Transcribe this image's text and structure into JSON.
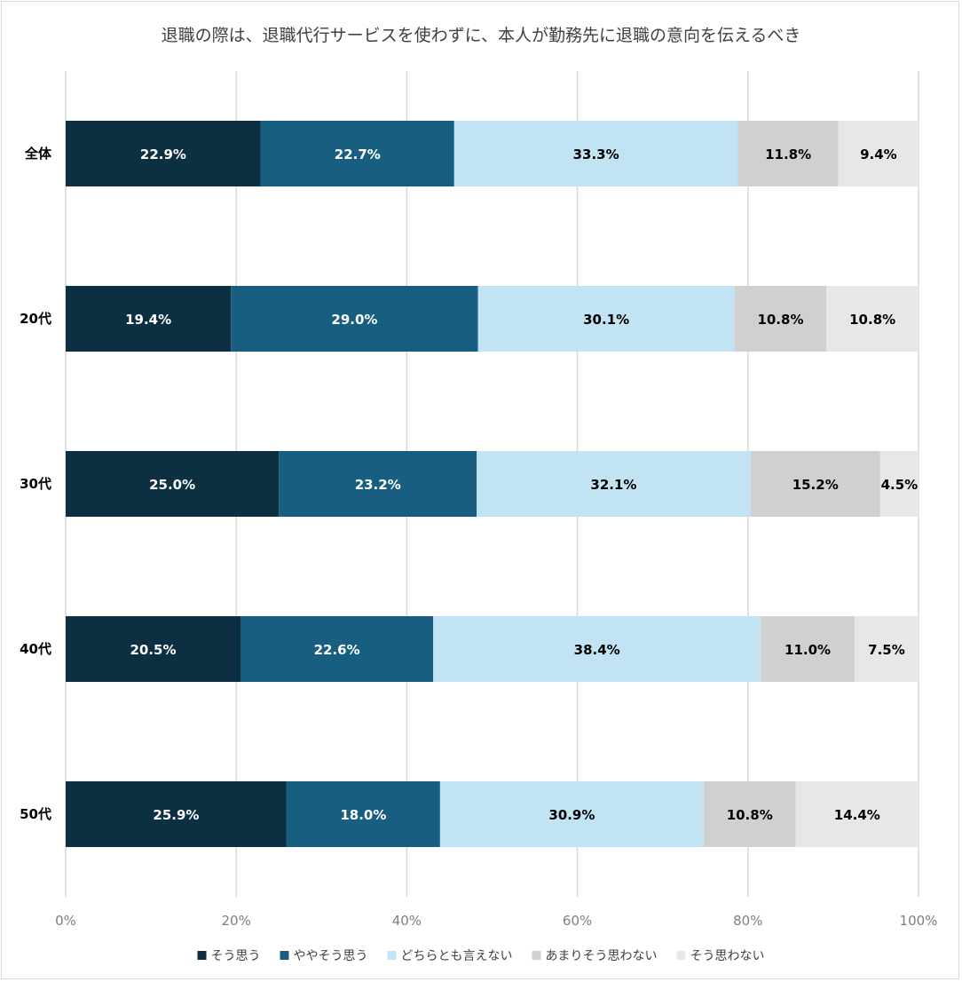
{
  "chart_data": {
    "type": "bar",
    "orientation": "horizontal",
    "stacked": "percent",
    "title": "退職の際は、退職代行サービスを使わずに、本人が勤務先に退職の意向を伝えるべき",
    "categories": [
      "全体",
      "20代",
      "30代",
      "40代",
      "50代"
    ],
    "series": [
      {
        "name": "そう思う",
        "color": "#0d2f42",
        "label_color": "#ffffff",
        "values": [
          22.9,
          19.4,
          25.0,
          20.5,
          25.9
        ]
      },
      {
        "name": "ややそう思う",
        "color": "#175e80",
        "label_color": "#ffffff",
        "values": [
          22.7,
          29.0,
          23.2,
          22.6,
          18.0
        ]
      },
      {
        "name": "どちらとも言えない",
        "color": "#c2e3f4",
        "label_color": "#000000",
        "values": [
          33.3,
          30.1,
          32.1,
          38.4,
          30.9
        ]
      },
      {
        "name": "あまりそう思わない",
        "color": "#d0d0d0",
        "label_color": "#000000",
        "values": [
          11.8,
          10.8,
          15.2,
          11.0,
          10.8
        ]
      },
      {
        "name": "そう思わない",
        "color": "#e7e7e7",
        "label_color": "#000000",
        "values": [
          9.4,
          10.8,
          4.5,
          7.5,
          14.4
        ]
      }
    ],
    "value_suffix": "%",
    "xlim": [
      0,
      100
    ],
    "xticks": [
      "0%",
      "20%",
      "40%",
      "60%",
      "80%",
      "100%"
    ],
    "grid": true,
    "legend_position": "bottom"
  }
}
